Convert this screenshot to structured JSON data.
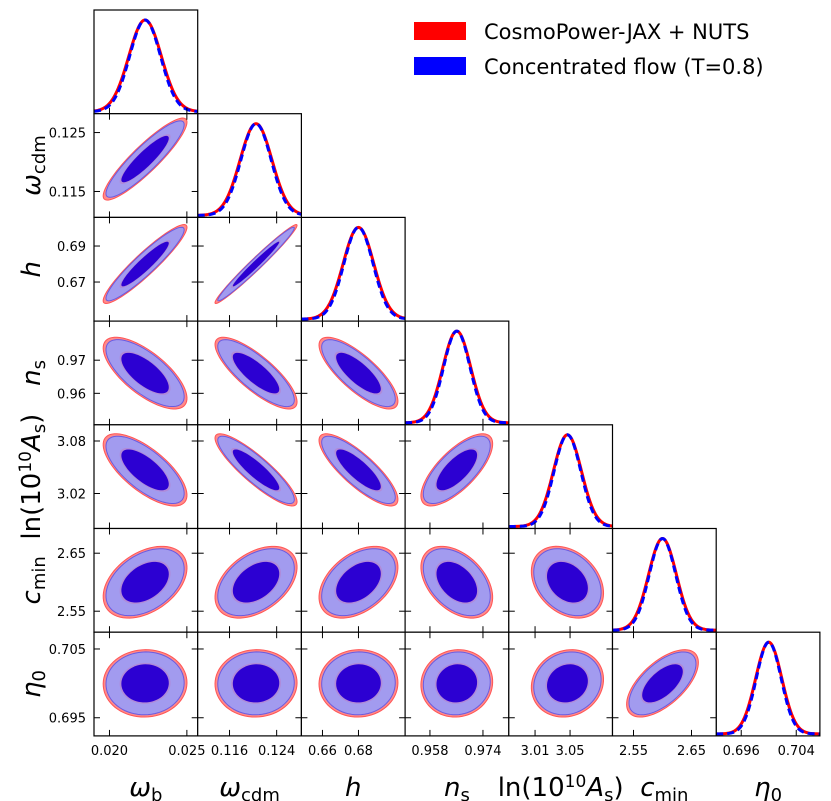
{
  "chart_data": {
    "type": "corner",
    "title": "",
    "legend": {
      "placement": "top-right",
      "entries": [
        {
          "label": "CosmoPower-JAX + NUTS",
          "color": "#ff0000"
        },
        {
          "label": "Concentrated flow (T=0.8)",
          "color": "#0000ff"
        }
      ]
    },
    "colors": {
      "nuts_line": "#ff0000",
      "nuts_outer": "#ff8a8a",
      "flow_line": "#0000ff",
      "flow_outer": "#a29bef",
      "flow_inner": "#2c00d2"
    },
    "parameters": [
      {
        "key": "omega_b",
        "label_main": "ω",
        "label_sub": "b",
        "range": [
          0.019,
          0.0257
        ],
        "ticks": [
          "0.020",
          "0.025"
        ],
        "tick_values": [
          0.02,
          0.025
        ],
        "mean": 0.0223,
        "sd": 0.00105
      },
      {
        "key": "omega_cdm",
        "label_main": "ω",
        "label_sub": "cdm",
        "range": [
          0.1106,
          0.1282
        ],
        "ticks": [
          "0.116",
          "0.124"
        ],
        "tick_values": [
          0.116,
          0.124
        ],
        "y_ticks": [
          "0.125",
          "0.115"
        ],
        "y_tick_values": [
          0.125,
          0.115
        ],
        "mean": 0.1205,
        "sd": 0.0027
      },
      {
        "key": "h",
        "label_main": "h",
        "label_sub": "",
        "range": [
          0.6483,
          0.7059
        ],
        "ticks": [
          "0.66",
          "0.68"
        ],
        "tick_values": [
          0.66,
          0.68
        ],
        "y_ticks": [
          "0.69",
          "0.67"
        ],
        "y_tick_values": [
          0.69,
          0.67
        ],
        "mean": 0.68,
        "sd": 0.0085
      },
      {
        "key": "n_s",
        "label_main": "n",
        "label_sub": "s",
        "range": [
          0.9505,
          0.9818
        ],
        "ticks": [
          "0.958",
          "0.974"
        ],
        "tick_values": [
          0.958,
          0.974
        ],
        "y_ticks": [
          "0.97",
          "0.96"
        ],
        "y_tick_values": [
          0.97,
          0.96
        ],
        "mean": 0.9661,
        "sd": 0.0042
      },
      {
        "key": "ln10A_s",
        "label_main": "ln(10¹⁰A",
        "label_sub": "s",
        "label_tail": ")",
        "range": [
          2.98,
          3.0985
        ],
        "ticks": [
          "3.01",
          "3.05"
        ],
        "tick_values": [
          3.01,
          3.05
        ],
        "y_ticks": [
          "3.08",
          "3.02"
        ],
        "y_tick_values": [
          3.08,
          3.02
        ],
        "mean": 3.047,
        "sd": 0.016
      },
      {
        "key": "c_min",
        "label_main": "c",
        "label_sub": "min",
        "range": [
          2.5138,
          2.6926
        ],
        "ticks": [
          "2.55",
          "2.65"
        ],
        "tick_values": [
          2.55,
          2.65
        ],
        "y_ticks": [
          "2.65",
          "2.55"
        ],
        "y_tick_values": [
          2.65,
          2.55
        ],
        "mean": 2.6,
        "sd": 0.024
      },
      {
        "key": "eta_0",
        "label_main": "η",
        "label_sub": "0",
        "range": [
          0.69236,
          0.70744
        ],
        "ticks": [
          "0.696",
          "0.704"
        ],
        "tick_values": [
          0.696,
          0.704
        ],
        "y_ticks": [
          "0.705",
          "0.695"
        ],
        "y_tick_values": [
          0.705,
          0.695
        ],
        "mean": 0.7,
        "sd": 0.0019
      }
    ],
    "correlations": {
      "1,0": 0.9,
      "2,0": 0.93,
      "2,1": 0.98,
      "3,0": -0.7,
      "3,1": -0.8,
      "3,2": -0.78,
      "4,0": -0.7,
      "4,1": -0.88,
      "4,2": -0.82,
      "4,3": 0.72,
      "5,0": 0.4,
      "5,1": 0.42,
      "5,2": 0.42,
      "5,3": -0.42,
      "5,4": -0.3,
      "6,0": 0.02,
      "6,1": 0.02,
      "6,2": 0.02,
      "6,3": 0.05,
      "6,4": 0.12,
      "6,5": 0.62
    },
    "flow_shift_sd": 0.08
  }
}
